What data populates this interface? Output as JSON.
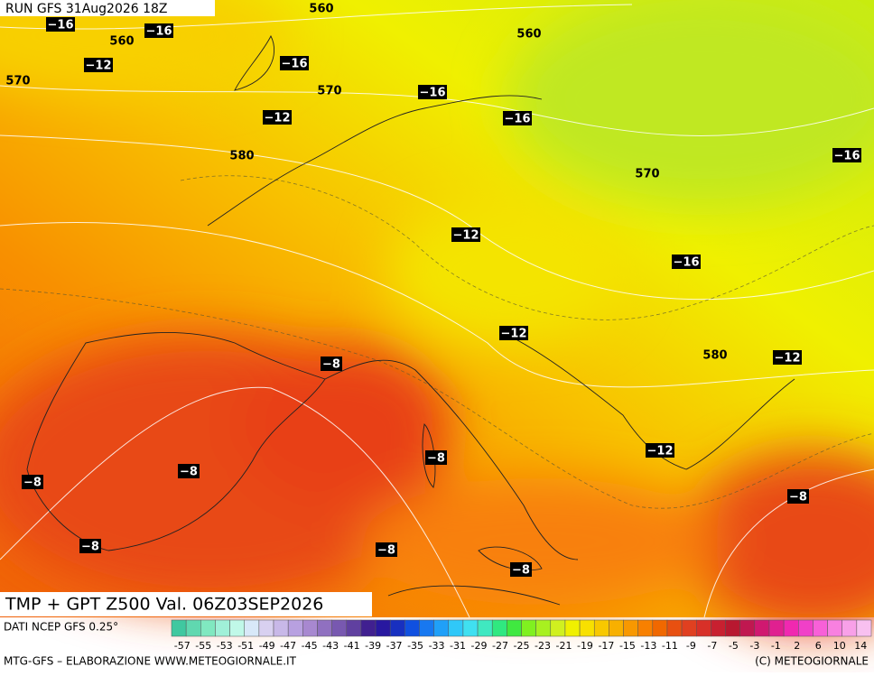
{
  "header": {
    "run": "RUN GFS 31Aug2026 18Z"
  },
  "map": {
    "temperature_labels": [
      "−16",
      "−16",
      "−12",
      "−16",
      "−16",
      "−12",
      "−16",
      "−16",
      "−12",
      "−16",
      "−12",
      "−8",
      "−12",
      "−12",
      "−8",
      "−8",
      "−8",
      "−8",
      "−8",
      "−8",
      "−8"
    ],
    "height_labels": [
      "560",
      "560",
      "560",
      "570",
      "570",
      "580",
      "570",
      "580"
    ]
  },
  "footer": {
    "title": "TMP + GPT Z500 Val. 06Z03SEP2026",
    "source": "DATI NCEP GFS 0.25°",
    "credit": "MTG-GFS – ELABORAZIONE WWW.METEOGIORNALE.IT",
    "copyright": "(C) METEOGIORNALE"
  },
  "legend": {
    "ticks": [
      -57,
      -55,
      -53,
      -51,
      -49,
      -47,
      -45,
      -43,
      -41,
      -39,
      -37,
      -35,
      -33,
      -31,
      -29,
      -27,
      -25,
      -23,
      -21,
      -19,
      -17,
      -15,
      -13,
      -11,
      -9,
      -7,
      -5,
      -3,
      -1,
      2,
      6,
      10,
      14
    ],
    "colors": [
      "#40c8a0",
      "#60d8b0",
      "#80e8c0",
      "#a0f0d8",
      "#c0f8e8",
      "#d8e8f8",
      "#d8d0f0",
      "#c8b8e8",
      "#b8a0e0",
      "#a888d0",
      "#9070c0",
      "#7858b0",
      "#6040a0",
      "#402090",
      "#2818a0",
      "#1830c0",
      "#1050e0",
      "#1878f0",
      "#20a0f8",
      "#30c8f8",
      "#40e0f0",
      "#40e8c0",
      "#30e880",
      "#40e840",
      "#80f020",
      "#a8f020",
      "#d0f020",
      "#f0f000",
      "#f8e000",
      "#f8c800",
      "#f8b000",
      "#f89800",
      "#f88000",
      "#f06800",
      "#e85010",
      "#e04020",
      "#d83028",
      "#c82030",
      "#b81830",
      "#c01850",
      "#d01870",
      "#e02090",
      "#f028b0",
      "#f040c8",
      "#f860d8",
      "#f880e0",
      "#f8a0e8",
      "#f8c0f0"
    ]
  }
}
